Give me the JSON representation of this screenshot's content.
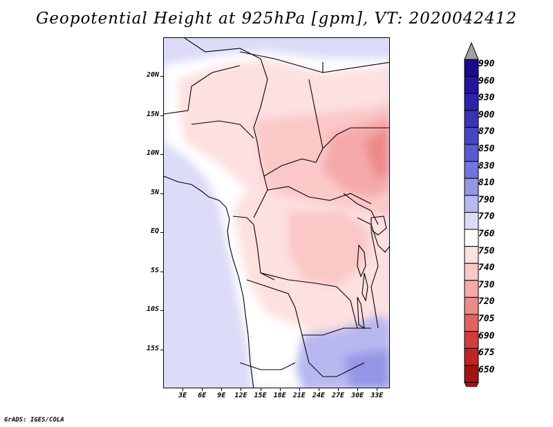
{
  "title": "Geopotential Height at 925hPa [gpm], VT: 2020042412",
  "credit": "GrADS: IGES/COLA",
  "map": {
    "lat_labels": [
      "20N",
      "15N",
      "10N",
      "5N",
      "EQ",
      "5S",
      "10S",
      "15S"
    ],
    "lon_labels": [
      "3E",
      "6E",
      "9E",
      "12E",
      "15E",
      "18E",
      "21E",
      "24E",
      "27E",
      "30E",
      "33E"
    ],
    "lat_values": [
      20,
      15,
      10,
      5,
      0,
      -5,
      -10,
      -15
    ],
    "lon_values": [
      3,
      6,
      9,
      12,
      15,
      18,
      21,
      24,
      27,
      30,
      33
    ],
    "lon_range": [
      0,
      35
    ],
    "lat_range": [
      -20,
      25
    ]
  },
  "colorbar": {
    "levels": [
      "990",
      "960",
      "930",
      "900",
      "870",
      "850",
      "830",
      "810",
      "790",
      "770",
      "760",
      "750",
      "740",
      "730",
      "720",
      "705",
      "690",
      "675",
      "650"
    ],
    "colors": [
      "#1a0a8c",
      "#2414a0",
      "#2e23ac",
      "#3a33b8",
      "#4646c4",
      "#5a5ad0",
      "#7474dc",
      "#9696e6",
      "#b8b8f0",
      "#dcdcf8",
      "#ffffff",
      "#fde0e0",
      "#fbc8c8",
      "#f6a9a9",
      "#ee8a8a",
      "#e26262",
      "#d23c3c",
      "#bf2424",
      "#a01414"
    ],
    "top_arrow_color": "#a0a0a0",
    "bottom_arrow_color": "#a01414"
  }
}
